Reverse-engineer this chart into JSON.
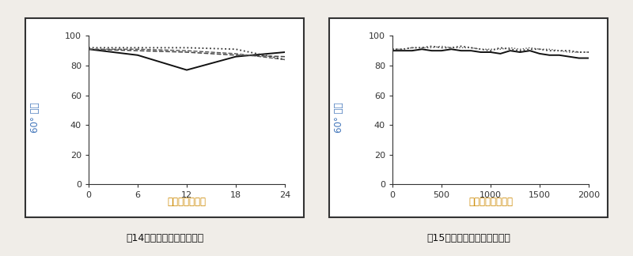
{
  "fig14": {
    "title": "图14－汽车涂料、户外老化",
    "xlabel": "曝晓时间（月）",
    "ylabel": "60° 光泽",
    "xlim": [
      0,
      24
    ],
    "ylim": [
      0,
      100
    ],
    "xticks": [
      0,
      6,
      12,
      18,
      24
    ],
    "yticks": [
      0,
      20,
      40,
      60,
      80,
      100
    ],
    "lines": [
      {
        "x": [
          0,
          6,
          12,
          18,
          24
        ],
        "y": [
          91,
          87,
          77,
          86,
          89
        ],
        "style": "solid",
        "color": "#111111",
        "lw": 1.4
      },
      {
        "x": [
          0,
          6,
          12,
          18,
          24
        ],
        "y": [
          91,
          90,
          89,
          87,
          86
        ],
        "style": "dashed",
        "color": "#444444",
        "lw": 1.1
      },
      {
        "x": [
          0,
          6,
          12,
          18,
          24
        ],
        "y": [
          91,
          91,
          90,
          88,
          84
        ],
        "style": "dashed",
        "color": "#555555",
        "lw": 1.0
      },
      {
        "x": [
          0,
          6,
          12,
          18,
          24
        ],
        "y": [
          92,
          92,
          92,
          91,
          84
        ],
        "style": "dotted",
        "color": "#333333",
        "lw": 1.3
      }
    ]
  },
  "fig15": {
    "title": "图15－汽车涂料、实验室老化",
    "xlabel": "曝晓时间（小时）",
    "ylabel": "60° 光泽",
    "xlim": [
      0,
      2000
    ],
    "ylim": [
      0,
      100
    ],
    "xticks": [
      0,
      500,
      1000,
      1500,
      2000
    ],
    "yticks": [
      0,
      20,
      40,
      60,
      80,
      100
    ],
    "lines": [
      {
        "x": [
          0,
          100,
          200,
          300,
          400,
          500,
          600,
          700,
          800,
          900,
          1000,
          1100,
          1200,
          1300,
          1400,
          1500,
          1600,
          1700,
          1800,
          1900,
          2000
        ],
        "y": [
          90,
          90,
          90,
          91,
          90,
          90,
          91,
          90,
          90,
          89,
          89,
          88,
          90,
          89,
          90,
          88,
          87,
          87,
          86,
          85,
          85
        ],
        "style": "solid",
        "color": "#111111",
        "lw": 1.4
      },
      {
        "x": [
          0,
          100,
          200,
          300,
          400,
          500,
          600,
          700,
          800,
          900,
          1000,
          1100,
          1200,
          1300,
          1400,
          1500,
          1600,
          1700,
          1800,
          1900,
          2000
        ],
        "y": [
          91,
          91,
          92,
          92,
          93,
          92,
          92,
          93,
          92,
          91,
          90,
          92,
          91,
          90,
          91,
          91,
          90,
          90,
          90,
          89,
          89
        ],
        "style": "dotted",
        "color": "#333333",
        "lw": 1.3
      },
      {
        "x": [
          0,
          100,
          200,
          300,
          400,
          500,
          600,
          700,
          800,
          900,
          1000,
          1100,
          1200,
          1300,
          1400,
          1500,
          1600,
          1700,
          1800,
          1900,
          2000
        ],
        "y": [
          91,
          91,
          92,
          92,
          92,
          93,
          92,
          92,
          92,
          91,
          91,
          91,
          92,
          91,
          92,
          91,
          91,
          90,
          89,
          89,
          89
        ],
        "style": "dotted",
        "color": "#555555",
        "lw": 1.0
      }
    ]
  },
  "bg_color": "#f0ede8",
  "plot_bg": "#ffffff",
  "outer_border_color": "#333333",
  "xlabel_color": "#cc8800",
  "ylabel_color": "#4477bb",
  "title_color": "#111111",
  "caption_fig14_color": "#111111",
  "caption_fig15_color": "#111111"
}
